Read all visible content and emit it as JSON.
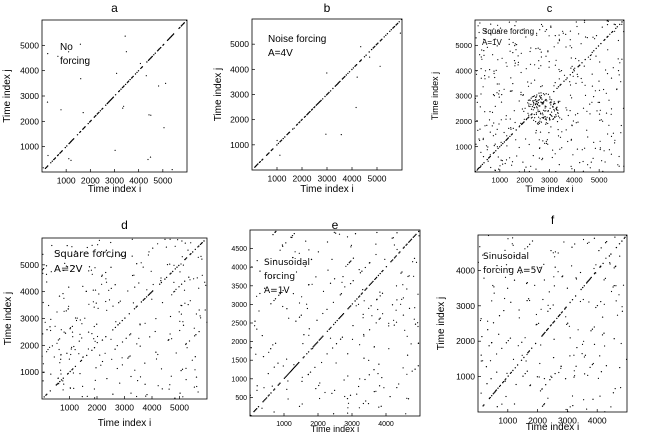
{
  "figure": {
    "background": "#ffffff",
    "ink_color": "#000000"
  },
  "chart_data": [
    {
      "id": "a",
      "letter": "a",
      "type": "scatter",
      "title": "a",
      "annotation": [
        "No",
        "forcing"
      ],
      "xlabel": "Time index i",
      "ylabel": "Time index j",
      "xlim": [
        0,
        6000
      ],
      "ylim": [
        0,
        6000
      ],
      "xticks": [
        1000,
        2000,
        3000,
        4000,
        5000
      ],
      "yticks": [
        1000,
        2000,
        3000,
        4000,
        5000
      ],
      "pattern": {
        "diagonal_density": 0.55,
        "parallel_lines": [],
        "parallel_density": 0,
        "scatter_points": 30,
        "cluster": null
      },
      "grid": false
    },
    {
      "id": "b",
      "letter": "b",
      "type": "scatter",
      "title": "b",
      "annotation": [
        "Noise forcing",
        "A=4V"
      ],
      "xlabel": "Time index i",
      "ylabel": "Time index j",
      "xlim": [
        0,
        6000
      ],
      "ylim": [
        0,
        6000
      ],
      "xticks": [
        1000,
        2000,
        3000,
        4000,
        5000
      ],
      "yticks": [
        1000,
        2000,
        3000,
        4000,
        5000
      ],
      "pattern": {
        "diagonal_density": 0.55,
        "parallel_lines": [],
        "parallel_density": 0,
        "scatter_points": 12,
        "cluster": null
      },
      "grid": false
    },
    {
      "id": "c",
      "letter": "c",
      "type": "scatter",
      "title": "c",
      "annotation": [
        "Square forcing",
        "A=1V"
      ],
      "xlabel": "Time index i",
      "ylabel": "Time index j",
      "xlim": [
        0,
        6000
      ],
      "ylim": [
        0,
        6000
      ],
      "xticks": [
        1000,
        2000,
        3000,
        4000,
        5000
      ],
      "yticks": [
        1000,
        2000,
        3000,
        4000,
        5000
      ],
      "pattern": {
        "diagonal_density": 0.4,
        "parallel_lines": [],
        "parallel_density": 0,
        "scatter_points": 420,
        "cluster": {
          "cx": 2700,
          "cy": 2500,
          "r": 650,
          "count": 130
        }
      },
      "grid": false
    },
    {
      "id": "d",
      "letter": "d",
      "type": "scatter",
      "title": "d",
      "annotation": [
        "Square forcing",
        "A=2V"
      ],
      "xlabel": "Time index i",
      "ylabel": "Time index j",
      "xlim": [
        0,
        6000
      ],
      "ylim": [
        0,
        6000
      ],
      "xticks": [
        1000,
        2000,
        3000,
        4000,
        5000
      ],
      "yticks": [
        1000,
        2000,
        3000,
        4000,
        5000
      ],
      "pattern": {
        "diagonal_density": 0.4,
        "parallel_lines": [
          -4800,
          -4000,
          -3200,
          -2400,
          -1600,
          -800,
          800,
          1600,
          2400,
          3200,
          4000,
          4800
        ],
        "parallel_density": 0.12,
        "scatter_points": 220,
        "cluster": null
      },
      "grid": false
    },
    {
      "id": "e",
      "letter": "e",
      "type": "scatter",
      "title": "e",
      "annotation": [
        "Sinusoidal",
        "forcing",
        "A=1V"
      ],
      "xlabel": "Time index i",
      "ylabel": "",
      "xlim": [
        0,
        5000
      ],
      "ylim": [
        0,
        5000
      ],
      "xticks": [
        1000,
        2000,
        3000,
        4000
      ],
      "yticks": [
        500,
        1000,
        1500,
        2000,
        2500,
        3000,
        3500,
        4000,
        4500
      ],
      "pattern": {
        "diagonal_density": 0.6,
        "parallel_lines": [
          -4200,
          -3600,
          -3000,
          -2400,
          -1800,
          -1200,
          -600,
          600,
          1200,
          1800,
          2400,
          3000,
          3600,
          4200
        ],
        "parallel_density": 0.16,
        "scatter_points": 130,
        "cluster": null
      },
      "grid": false
    },
    {
      "id": "f",
      "letter": "f",
      "type": "scatter",
      "title": "f",
      "annotation": [
        "Sinusoidal",
        "forcing A=5V"
      ],
      "xlabel": "Time index i",
      "ylabel": "Time index j",
      "xlim": [
        0,
        5000
      ],
      "ylim": [
        0,
        5000
      ],
      "xticks": [
        1000,
        2000,
        3000,
        4000
      ],
      "yticks": [
        1000,
        2000,
        3000,
        4000
      ],
      "pattern": {
        "diagonal_density": 0.45,
        "parallel_lines": [
          -4000,
          -3500,
          -3000,
          -2500,
          -2000,
          -1500,
          -1000,
          -500,
          500,
          1000,
          1500,
          2000,
          2500,
          3000,
          3500,
          4000
        ],
        "parallel_density": 0.12,
        "scatter_points": 110,
        "cluster": null
      },
      "grid": false
    }
  ]
}
